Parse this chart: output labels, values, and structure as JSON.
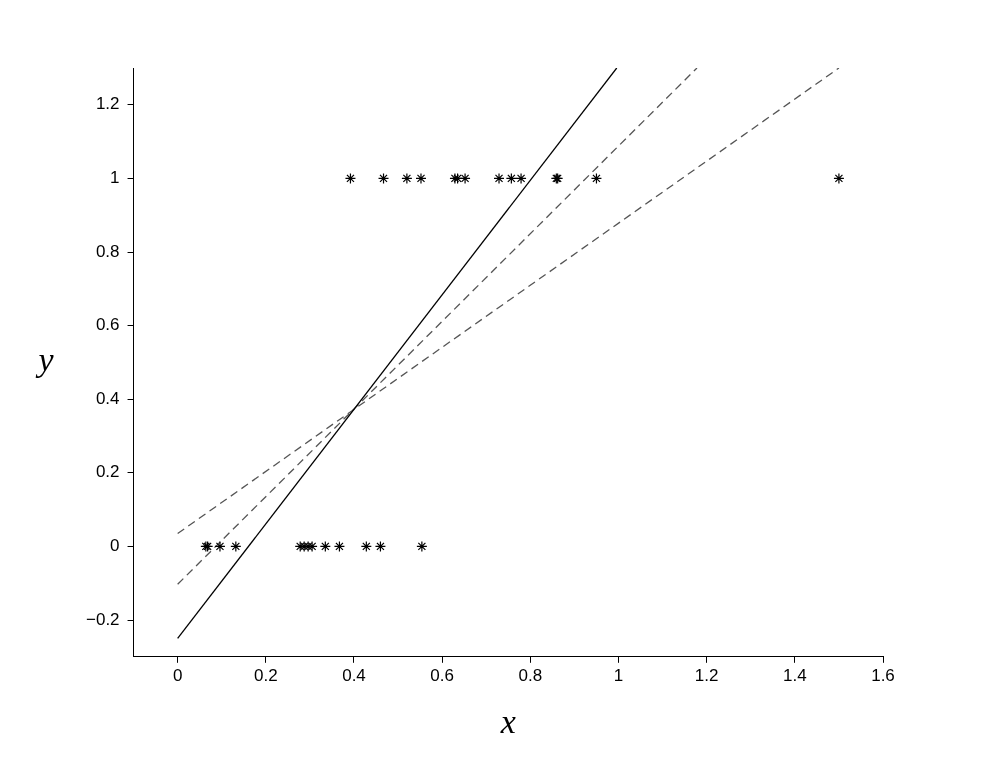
{
  "chart_data": {
    "type": "scatter",
    "xlabel": "x",
    "ylabel": "y",
    "xlim": [
      -0.1,
      1.6
    ],
    "ylim": [
      -0.3,
      1.3
    ],
    "xticks": [
      0,
      0.2,
      0.4,
      0.6,
      0.8,
      1,
      1.2,
      1.4,
      1.6
    ],
    "yticks": [
      -0.2,
      0,
      0.2,
      0.4,
      0.6,
      0.8,
      1,
      1.2
    ],
    "grid": false,
    "legend": false,
    "marker": "cross",
    "series": [
      {
        "color": "#000000",
        "x": [
          0.064,
          0.068,
          0.096,
          0.132,
          0.278,
          0.287,
          0.296,
          0.305,
          0.335,
          0.367,
          0.428,
          0.46,
          0.554,
          0.392,
          0.467,
          0.52,
          0.552,
          0.629,
          0.635,
          0.652,
          0.729,
          0.757,
          0.779,
          0.859,
          0.862,
          0.95,
          1.5
        ],
        "values": [
          0,
          0,
          0,
          0,
          0,
          0,
          0,
          0,
          0,
          0,
          0,
          0,
          0,
          1,
          1,
          1,
          1,
          1,
          1,
          1,
          1,
          1,
          1,
          1,
          1,
          1,
          1
        ]
      },
      {
        "type": "line",
        "color": "#000000",
        "line_style": "solid",
        "marker": "none",
        "x": [
          0,
          0.996
        ],
        "values": [
          -0.25,
          1.3
        ]
      },
      {
        "type": "line",
        "color": "#555555",
        "line_style": "dashed",
        "marker": "none",
        "x": [
          0,
          1.178
        ],
        "values": [
          -0.103,
          1.3
        ]
      },
      {
        "type": "line",
        "color": "#555555",
        "line_style": "dashed",
        "marker": "none",
        "x": [
          0,
          1.5
        ],
        "values": [
          0.035,
          1.3
        ]
      }
    ]
  }
}
